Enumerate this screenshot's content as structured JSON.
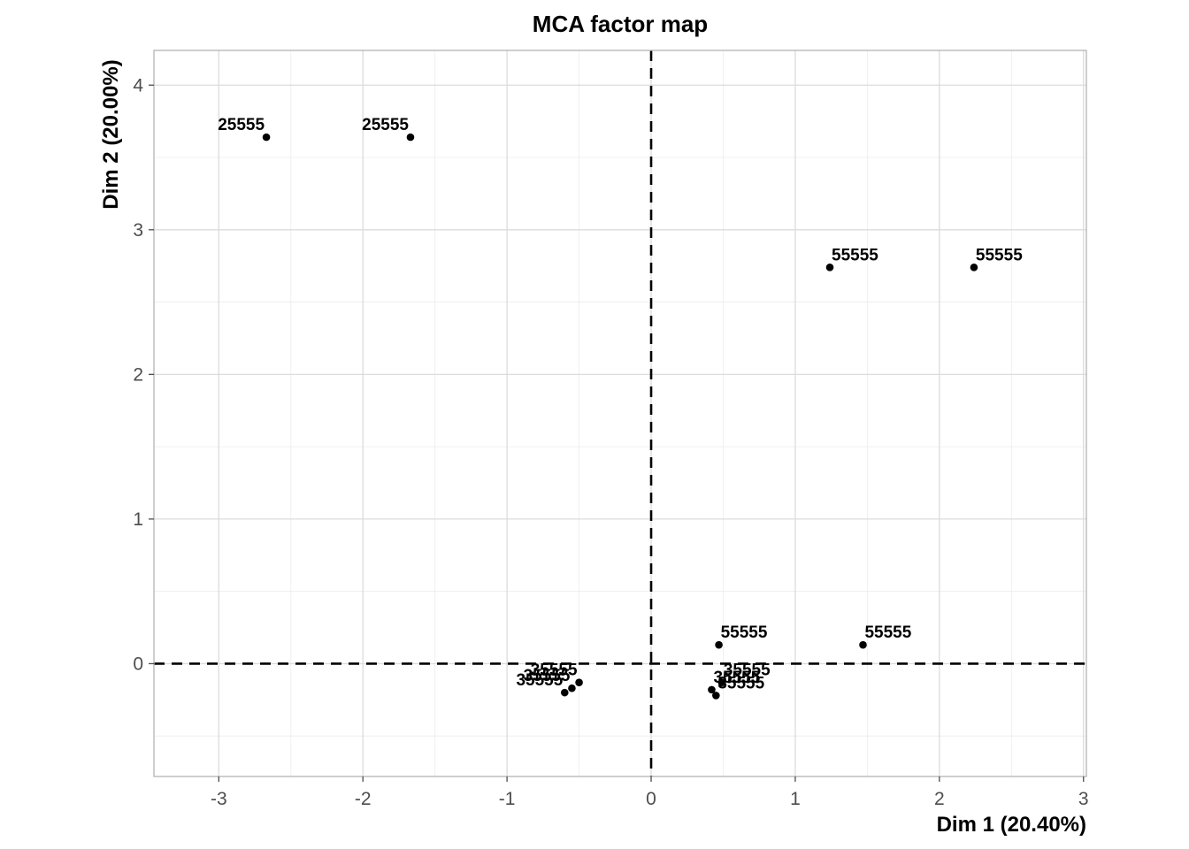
{
  "chart_data": {
    "type": "scatter",
    "title": "MCA factor map",
    "xlabel": "Dim 1 (20.40%)",
    "ylabel": "Dim 2 (20.00%)",
    "xlim": [
      -3.45,
      3.02
    ],
    "ylim": [
      -0.78,
      4.24
    ],
    "x_ticks": [
      -3,
      -2,
      -1,
      0,
      1,
      2,
      3
    ],
    "y_ticks": [
      0,
      1,
      2,
      3,
      4
    ],
    "x_tick_labels": [
      "-3",
      "-2",
      "-1",
      "0",
      "1",
      "2",
      "3"
    ],
    "y_tick_labels": [
      "0",
      "1",
      "2",
      "3",
      "4"
    ],
    "grid": true,
    "reference_lines": {
      "x": 0,
      "y": 0,
      "style": "dashed"
    },
    "points": [
      {
        "x": -2.67,
        "y": 3.64,
        "label": "25555"
      },
      {
        "x": -1.67,
        "y": 3.64,
        "label": "25555"
      },
      {
        "x": 1.24,
        "y": 2.74,
        "label": "55555"
      },
      {
        "x": 2.24,
        "y": 2.74,
        "label": "55555"
      },
      {
        "x": 0.47,
        "y": 0.13,
        "label": "55555"
      },
      {
        "x": 1.47,
        "y": 0.13,
        "label": "55555"
      },
      {
        "x": -0.5,
        "y": -0.13,
        "label": "35555"
      },
      {
        "x": -0.55,
        "y": -0.17,
        "label": "35555"
      },
      {
        "x": -0.6,
        "y": -0.2,
        "label": "35555"
      },
      {
        "x": 0.49,
        "y": -0.13,
        "label": "35555"
      },
      {
        "x": 0.42,
        "y": -0.18,
        "label": "35555"
      },
      {
        "x": 0.45,
        "y": -0.22,
        "label": "35555"
      }
    ]
  }
}
